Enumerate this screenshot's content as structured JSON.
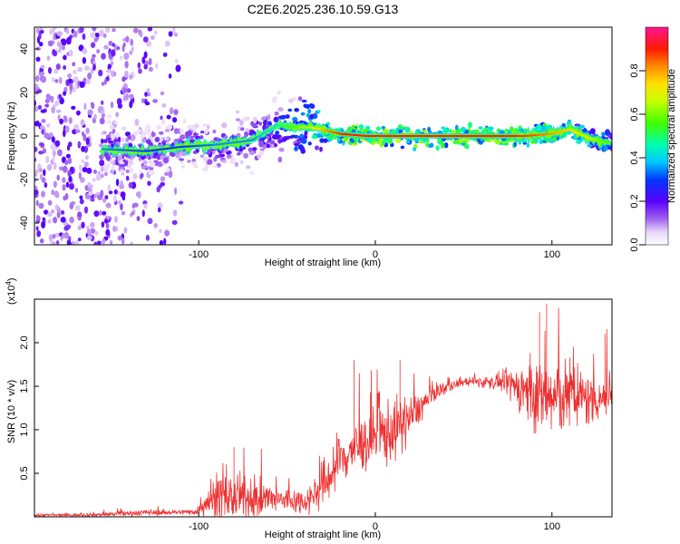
{
  "figure_title": "C2E6.2025.236.10.59.G13",
  "colors": {
    "snr_line": "#ee3030",
    "axis": "#000000"
  },
  "chart_data": [
    {
      "type": "heatmap",
      "panel": "spectrogram",
      "xlabel": "Height of straight line (km)",
      "ylabel": "Frequency (Hz)",
      "xlim": [
        -193,
        134
      ],
      "ylim": [
        -50,
        50
      ],
      "x_ticks": [
        -100,
        0,
        100
      ],
      "x_tick_labels": [
        "-100",
        "0",
        "100"
      ],
      "y_ticks": [
        -40,
        -20,
        0,
        20,
        40
      ],
      "y_tick_labels": [
        "-40",
        "-20",
        "0",
        "20",
        "40"
      ],
      "colorbar": {
        "label": "Normalized spectral amplitude",
        "range": [
          0,
          1
        ],
        "ticks": [
          0.0,
          0.2,
          0.4,
          0.6,
          0.8
        ],
        "tick_labels": [
          "0.0",
          "0.2",
          "0.4",
          "0.6",
          "0.8"
        ]
      },
      "ridge": {
        "x": [
          -155,
          -130,
          -110,
          -90,
          -70,
          -55,
          -45,
          -38,
          -30,
          -20,
          -5,
          10,
          40,
          70,
          85,
          100,
          110,
          118,
          125,
          134
        ],
        "frequency": [
          -6,
          -7,
          -5,
          -4,
          -2,
          5,
          4,
          4,
          3,
          1,
          0,
          0,
          0,
          0,
          0,
          1,
          3,
          0,
          -2,
          -3
        ],
        "amplitude": [
          0.35,
          0.3,
          0.3,
          0.35,
          0.35,
          0.45,
          0.6,
          0.65,
          0.8,
          0.9,
          0.92,
          0.92,
          0.92,
          0.92,
          0.88,
          0.8,
          0.75,
          0.7,
          0.6,
          0.5
        ]
      },
      "noise_region": [
        -193,
        -110
      ]
    },
    {
      "type": "line",
      "panel": "snr",
      "xlabel": "Height of straight line (km)",
      "ylabel": "SNR (10 * v/v)",
      "y_scale_label": "(x10",
      "y_scale_exp": "4",
      "xlim": [
        -193,
        134
      ],
      "ylim": [
        0,
        2.5
      ],
      "x_ticks": [
        -100,
        0,
        100
      ],
      "x_tick_labels": [
        "-100",
        "0",
        "100"
      ],
      "y_ticks": [
        0.5,
        1.0,
        1.5,
        2.0
      ],
      "y_tick_labels": [
        "0.5",
        "1.0",
        "1.5",
        "2.0"
      ],
      "series": [
        {
          "name": "SNR",
          "x": [
            -193,
            -170,
            -150,
            -130,
            -115,
            -101,
            -95,
            -80,
            -60,
            -40,
            -32,
            -25,
            -15,
            -5,
            5,
            15,
            25,
            35,
            50,
            70,
            80,
            85,
            100,
            110,
            120,
            134
          ],
          "mean": [
            0.02,
            0.02,
            0.03,
            0.05,
            0.05,
            0.06,
            0.2,
            0.22,
            0.2,
            0.18,
            0.3,
            0.5,
            0.75,
            0.85,
            0.95,
            1.05,
            1.25,
            1.45,
            1.55,
            1.55,
            1.5,
            1.45,
            1.35,
            1.4,
            1.35,
            1.4
          ],
          "spread": [
            0.02,
            0.02,
            0.03,
            0.04,
            0.03,
            0.04,
            0.25,
            0.3,
            0.2,
            0.15,
            0.25,
            0.4,
            0.35,
            0.35,
            0.45,
            0.35,
            0.2,
            0.1,
            0.05,
            0.1,
            0.25,
            0.4,
            0.55,
            0.45,
            0.35,
            0.3
          ],
          "peak_values": [
            {
              "x": 97,
              "y": 2.45
            },
            {
              "x": 93,
              "y": 2.35
            },
            {
              "x": 130,
              "y": 2.1
            },
            {
              "x": -80,
              "y": 0.8
            },
            {
              "x": -12,
              "y": 1.8
            },
            {
              "x": 14,
              "y": 1.8
            }
          ]
        }
      ]
    }
  ]
}
